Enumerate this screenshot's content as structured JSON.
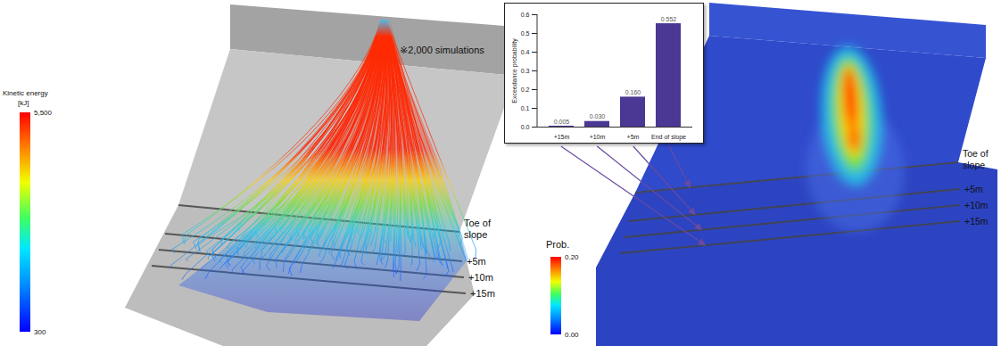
{
  "chart_data": {
    "type": "bar",
    "categories": [
      "+15m",
      "+10m",
      "+5m",
      "End of slope"
    ],
    "values": [
      0.005,
      0.03,
      0.16,
      0.552
    ],
    "value_labels": [
      "0.005",
      "0.030",
      "0.160",
      "0.552"
    ],
    "data_labels": true,
    "color": "#4b3794",
    "ylabel": "Exceedance probability",
    "ylim": [
      0,
      0.6
    ],
    "yticks": [
      {
        "value": 0,
        "label": "0.0"
      },
      {
        "value": 0.1,
        "label": "0.1"
      },
      {
        "value": 0.2,
        "label": "0.2"
      },
      {
        "value": 0.3,
        "label": "0.3"
      },
      {
        "value": 0.4,
        "label": "0.4"
      },
      {
        "value": 0.5,
        "label": "0.5"
      },
      {
        "value": 0.6,
        "label": "0.6"
      }
    ]
  },
  "left_panel": {
    "annotation": "※2,000 simulations",
    "colorbar": {
      "title": "Kinetic energy",
      "unit": "[kJ]",
      "range": [
        300,
        5500
      ],
      "ticks": [
        {
          "value": 5500,
          "label": "5,500"
        },
        300
      ]
    },
    "line_labels": [
      "Toe of slope",
      "+5m",
      "+10m",
      "+15m"
    ]
  },
  "right_panel": {
    "colorbar": {
      "title": "Prob.",
      "range": [
        0,
        0.2
      ],
      "ticks": [
        {
          "value": 0.2,
          "label": "0.20"
        },
        {
          "value": 0,
          "label": "0.00"
        }
      ]
    },
    "line_labels": [
      "Toe of slope",
      "+5m",
      "+10m",
      "+15m"
    ]
  }
}
